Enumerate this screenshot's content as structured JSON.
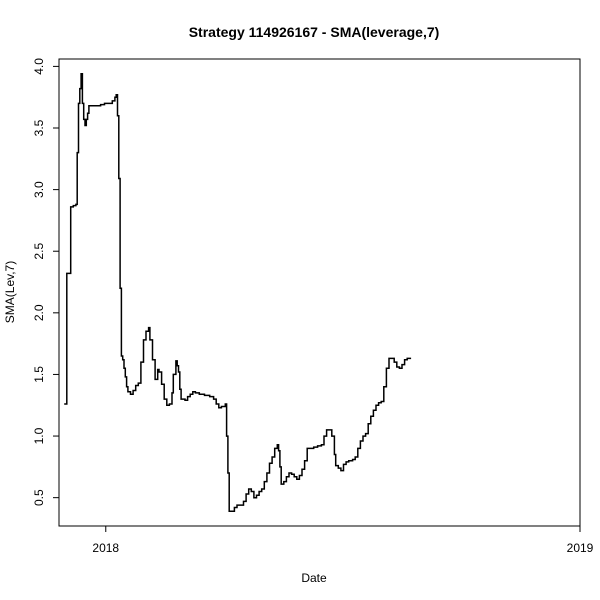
{
  "chart_data": {
    "type": "line",
    "title": "Strategy 114926167 - SMA(leverage,7)",
    "xlabel": "Date",
    "ylabel": "SMA(Lev,7)",
    "x_ticks": [
      {
        "label": "2018",
        "date": "2018-01-01"
      },
      {
        "label": "2019",
        "date": "2019-01-01"
      }
    ],
    "xlim": [
      "2017-11-26",
      "2019-01-01"
    ],
    "y_ticks": [
      0.5,
      1.0,
      1.5,
      2.0,
      2.5,
      3.0,
      3.5,
      4.0
    ],
    "y_tick_labels": [
      "0.5",
      "1.0",
      "1.5",
      "2.0",
      "2.5",
      "3.0",
      "3.5",
      "4.0"
    ],
    "ylim": [
      0.27,
      4.06
    ],
    "grid": false,
    "series": [
      {
        "color": "#000000",
        "step": true,
        "points": [
          [
            "2017-11-30",
            1.26
          ],
          [
            "2017-12-01",
            1.26
          ],
          [
            "2017-12-02",
            2.32
          ],
          [
            "2017-12-03",
            2.32
          ],
          [
            "2017-12-05",
            2.86
          ],
          [
            "2017-12-07",
            2.87
          ],
          [
            "2017-12-09",
            2.88
          ],
          [
            "2017-12-10",
            3.3
          ],
          [
            "2017-12-11",
            3.7
          ],
          [
            "2017-12-12",
            3.82
          ],
          [
            "2017-12-13",
            3.94
          ],
          [
            "2017-12-14",
            3.7
          ],
          [
            "2017-12-15",
            3.57
          ],
          [
            "2017-12-16",
            3.52
          ],
          [
            "2017-12-17",
            3.57
          ],
          [
            "2017-12-18",
            3.62
          ],
          [
            "2017-12-19",
            3.68
          ],
          [
            "2017-12-22",
            3.68
          ],
          [
            "2017-12-25",
            3.68
          ],
          [
            "2017-12-28",
            3.69
          ],
          [
            "2017-12-31",
            3.7
          ],
          [
            "2018-01-03",
            3.7
          ],
          [
            "2018-01-06",
            3.72
          ],
          [
            "2018-01-08",
            3.75
          ],
          [
            "2018-01-09",
            3.77
          ],
          [
            "2018-01-10",
            3.6
          ],
          [
            "2018-01-11",
            3.09
          ],
          [
            "2018-01-12",
            2.2
          ],
          [
            "2018-01-13",
            1.65
          ],
          [
            "2018-01-14",
            1.62
          ],
          [
            "2018-01-15",
            1.55
          ],
          [
            "2018-01-16",
            1.48
          ],
          [
            "2018-01-17",
            1.4
          ],
          [
            "2018-01-18",
            1.36
          ],
          [
            "2018-01-20",
            1.34
          ],
          [
            "2018-01-22",
            1.37
          ],
          [
            "2018-01-24",
            1.41
          ],
          [
            "2018-01-26",
            1.43
          ],
          [
            "2018-01-28",
            1.6
          ],
          [
            "2018-01-30",
            1.78
          ],
          [
            "2018-02-01",
            1.85
          ],
          [
            "2018-02-03",
            1.88
          ],
          [
            "2018-02-04",
            1.78
          ],
          [
            "2018-02-06",
            1.62
          ],
          [
            "2018-02-08",
            1.46
          ],
          [
            "2018-02-10",
            1.54
          ],
          [
            "2018-02-11",
            1.52
          ],
          [
            "2018-02-13",
            1.42
          ],
          [
            "2018-02-15",
            1.3
          ],
          [
            "2018-02-17",
            1.25
          ],
          [
            "2018-02-19",
            1.26
          ],
          [
            "2018-02-21",
            1.35
          ],
          [
            "2018-02-22",
            1.5
          ],
          [
            "2018-02-24",
            1.61
          ],
          [
            "2018-02-25",
            1.57
          ],
          [
            "2018-02-26",
            1.52
          ],
          [
            "2018-02-27",
            1.38
          ],
          [
            "2018-02-28",
            1.3
          ],
          [
            "2018-03-03",
            1.29
          ],
          [
            "2018-03-05",
            1.32
          ],
          [
            "2018-03-07",
            1.34
          ],
          [
            "2018-03-09",
            1.36
          ],
          [
            "2018-03-11",
            1.35
          ],
          [
            "2018-03-14",
            1.34
          ],
          [
            "2018-03-18",
            1.33
          ],
          [
            "2018-03-22",
            1.32
          ],
          [
            "2018-03-25",
            1.3
          ],
          [
            "2018-03-27",
            1.26
          ],
          [
            "2018-03-29",
            1.23
          ],
          [
            "2018-03-31",
            1.24
          ],
          [
            "2018-04-03",
            1.26
          ],
          [
            "2018-04-04",
            1.0
          ],
          [
            "2018-04-05",
            0.7
          ],
          [
            "2018-04-06",
            0.39
          ],
          [
            "2018-04-08",
            0.39
          ],
          [
            "2018-04-10",
            0.42
          ],
          [
            "2018-04-12",
            0.44
          ],
          [
            "2018-04-15",
            0.44
          ],
          [
            "2018-04-17",
            0.47
          ],
          [
            "2018-04-19",
            0.53
          ],
          [
            "2018-04-21",
            0.57
          ],
          [
            "2018-04-23",
            0.55
          ],
          [
            "2018-04-25",
            0.5
          ],
          [
            "2018-04-27",
            0.52
          ],
          [
            "2018-04-29",
            0.55
          ],
          [
            "2018-05-01",
            0.57
          ],
          [
            "2018-05-03",
            0.63
          ],
          [
            "2018-05-05",
            0.7
          ],
          [
            "2018-05-07",
            0.78
          ],
          [
            "2018-05-09",
            0.83
          ],
          [
            "2018-05-11",
            0.9
          ],
          [
            "2018-05-13",
            0.93
          ],
          [
            "2018-05-14",
            0.88
          ],
          [
            "2018-05-15",
            0.75
          ],
          [
            "2018-05-16",
            0.61
          ],
          [
            "2018-05-18",
            0.63
          ],
          [
            "2018-05-20",
            0.67
          ],
          [
            "2018-05-22",
            0.7
          ],
          [
            "2018-05-24",
            0.69
          ],
          [
            "2018-05-26",
            0.67
          ],
          [
            "2018-05-28",
            0.65
          ],
          [
            "2018-05-30",
            0.68
          ],
          [
            "2018-06-01",
            0.73
          ],
          [
            "2018-06-03",
            0.8
          ],
          [
            "2018-06-05",
            0.9
          ],
          [
            "2018-06-07",
            0.9
          ],
          [
            "2018-06-10",
            0.91
          ],
          [
            "2018-06-13",
            0.92
          ],
          [
            "2018-06-16",
            0.93
          ],
          [
            "2018-06-18",
            1.0
          ],
          [
            "2018-06-20",
            1.05
          ],
          [
            "2018-06-22",
            1.05
          ],
          [
            "2018-06-24",
            1.0
          ],
          [
            "2018-06-26",
            0.85
          ],
          [
            "2018-06-27",
            0.76
          ],
          [
            "2018-06-29",
            0.74
          ],
          [
            "2018-07-01",
            0.72
          ],
          [
            "2018-07-03",
            0.77
          ],
          [
            "2018-07-05",
            0.79
          ],
          [
            "2018-07-07",
            0.8
          ],
          [
            "2018-07-10",
            0.81
          ],
          [
            "2018-07-12",
            0.83
          ],
          [
            "2018-07-14",
            0.9
          ],
          [
            "2018-07-16",
            0.96
          ],
          [
            "2018-07-18",
            1.0
          ],
          [
            "2018-07-20",
            1.02
          ],
          [
            "2018-07-22",
            1.1
          ],
          [
            "2018-07-24",
            1.16
          ],
          [
            "2018-07-26",
            1.21
          ],
          [
            "2018-07-28",
            1.25
          ],
          [
            "2018-07-30",
            1.27
          ],
          [
            "2018-08-01",
            1.28
          ],
          [
            "2018-08-03",
            1.4
          ],
          [
            "2018-08-05",
            1.55
          ],
          [
            "2018-08-07",
            1.63
          ],
          [
            "2018-08-09",
            1.63
          ],
          [
            "2018-08-11",
            1.6
          ],
          [
            "2018-08-13",
            1.56
          ],
          [
            "2018-08-15",
            1.55
          ],
          [
            "2018-08-17",
            1.58
          ],
          [
            "2018-08-19",
            1.62
          ],
          [
            "2018-08-21",
            1.63
          ],
          [
            "2018-08-24",
            1.63
          ]
        ]
      }
    ]
  }
}
